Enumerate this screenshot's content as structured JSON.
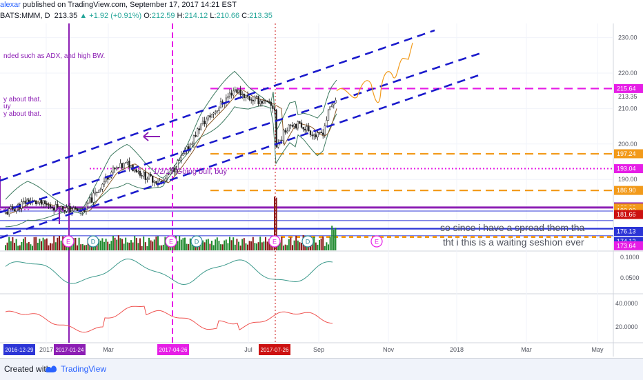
{
  "header": {
    "user": "alexar",
    "published": " published on TradingView.com, September 17, 2017 14:21 EST",
    "symbol": "BATS:MMM, D",
    "last": "213.35",
    "change": "▲ +1.92 (+0.91%)",
    "open_label": "O:",
    "open": "212.59",
    "high_label": "H:",
    "high": "214.12",
    "low_label": "L:",
    "low": "210.66",
    "close_label": "C:",
    "close": "213.35"
  },
  "footer": {
    "created_with": "Created with",
    "brand": "TradingView"
  },
  "chart_data": {
    "type": "candlestick",
    "colors": {
      "up": "#26a69a",
      "down": "#ef5350",
      "bb": "#3d7a60",
      "channel": "#1a1acc",
      "orange": "#f29a1a",
      "magenta": "#e61ee6",
      "purple": "#8c1eb4",
      "osc1": "#3d9a8c",
      "osc2": "#ef5350"
    },
    "price_axis": {
      "min": 170,
      "max": 234,
      "ticks": [
        "230.00",
        "220.00",
        "213.35",
        "210.00",
        "200.00",
        "190.00"
      ]
    },
    "price_levels": [
      {
        "label": "215.64",
        "value": 215.64,
        "color": "#e61ee6",
        "style": "dash"
      },
      {
        "label": "197.24",
        "value": 197.24,
        "color": "#f29a1a",
        "style": "dash"
      },
      {
        "label": "193.04",
        "value": 193.04,
        "color": "#e61ee6",
        "style": "dot"
      },
      {
        "label": "186.90",
        "value": 186.9,
        "color": "#f29a1a",
        "style": "dash"
      },
      {
        "label": "182.26",
        "value": 182.26,
        "color": "#8c1eb4",
        "style": "solid"
      },
      {
        "label": "182.33",
        "value": 182.33,
        "color": "#f29a1a",
        "style": "tag"
      },
      {
        "label": "182.00",
        "value": 182.0,
        "color": "#f29a1a",
        "style": "tag"
      },
      {
        "label": "181.66",
        "value": 181.66,
        "color": "#cc1111",
        "style": "tag"
      },
      {
        "label": "176.13",
        "value": 176.13,
        "color": "#2c35d6",
        "style": "tag"
      },
      {
        "label": "174.12",
        "value": 174.12,
        "color": "#2c35d6",
        "style": "tag"
      },
      {
        "label": "173.64",
        "value": 173.64,
        "color": "#e61ee6",
        "style": "tag"
      }
    ],
    "time_axis": [
      "2017",
      "Mar",
      "Jul",
      "Sep",
      "Nov",
      "2018",
      "Mar",
      "May"
    ],
    "time_tags": [
      "2016-12-29",
      "2017-01-24",
      "2017-04-26",
      "2017-07-26"
    ],
    "events": [
      "E",
      "D",
      "E",
      "D",
      "E",
      "D",
      "E"
    ],
    "annotations": [
      "nded such as ADX, and high BW.",
      "y about that.",
      "uy",
      "y about that.",
      "1/2/17 Going bull, buy",
      "so since i have a spread them tha",
      "tht i this is a waiting seshion ever"
    ],
    "indicator1_axis": [
      "0.1000",
      "0.0500"
    ],
    "indicator2_axis": [
      "40.0000",
      "20.0000"
    ]
  }
}
